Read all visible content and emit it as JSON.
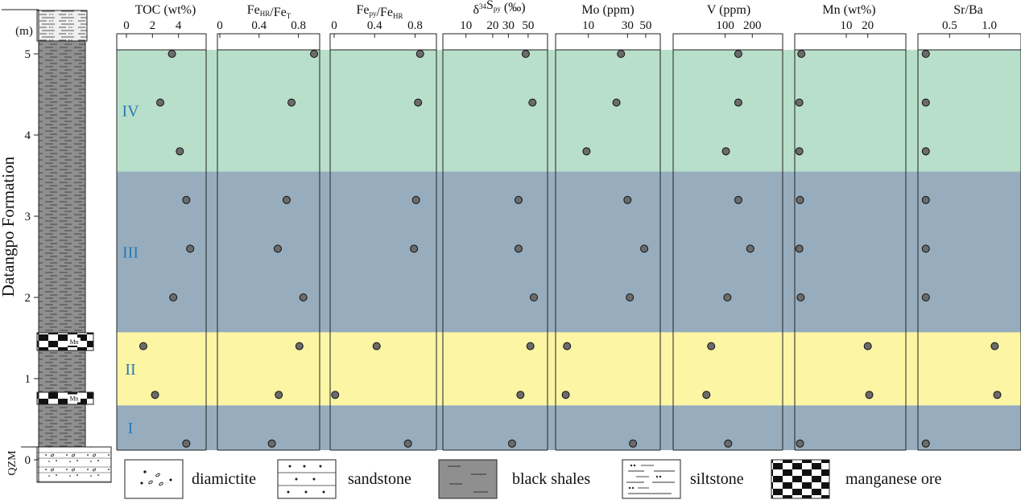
{
  "chart_data": {
    "type": "scatter",
    "formation_label": "Datangpo  Formation",
    "base_unit_label": "QZM",
    "depth_unit": "(m)",
    "depth_ticks": [
      "0",
      "1",
      "2",
      "3",
      "4",
      "5"
    ],
    "depth_range": [
      0,
      5.0
    ],
    "zones": [
      {
        "label": "IV",
        "from": 3.55,
        "to": 5.05,
        "color": "#b8dfca"
      },
      {
        "label": "III",
        "from": 1.57,
        "to": 3.55,
        "color": "#97adbd"
      },
      {
        "label": "II",
        "from": 0.67,
        "to": 1.57,
        "color": "#fbf5a4"
      },
      {
        "label": "I",
        "from": 0.0,
        "to": 0.67,
        "color": "#97adbd"
      }
    ],
    "sample_depths": [
      5.0,
      4.4,
      3.8,
      3.2,
      2.6,
      2.0,
      1.4,
      0.8,
      0.2
    ],
    "panels": [
      {
        "id": "toc",
        "title": "TOC (wt%)",
        "scale": "linear",
        "range": [
          0,
          6
        ],
        "ticks": [
          {
            "label": "0",
            "value": 0
          },
          {
            "label": "2",
            "value": 2
          },
          {
            "label": "4",
            "value": 4
          }
        ],
        "values": [
          3.5,
          2.6,
          4.1,
          4.6,
          4.9,
          3.6,
          1.3,
          2.2,
          4.6
        ]
      },
      {
        "id": "fehr",
        "title": "Fe<sub>HR</sub>/Fe<sub>T</sub>",
        "scale": "linear",
        "range": [
          0,
          1.0
        ],
        "ticks": [
          {
            "label": "0",
            "value": 0
          },
          {
            "label": "0.4",
            "value": 0.4
          },
          {
            "label": "0.8",
            "value": 0.8
          }
        ],
        "values": [
          0.96,
          0.73,
          null,
          0.68,
          0.59,
          0.85,
          0.81,
          0.6,
          0.53
        ]
      },
      {
        "id": "fepy",
        "title": "Fe<sub>py</sub>/Fe<sub>HR</sub>",
        "scale": "linear",
        "range": [
          0,
          0.9
        ],
        "ticks": [
          {
            "label": "0",
            "value": 0
          },
          {
            "label": "0.4",
            "value": 0.4
          },
          {
            "label": "0.8",
            "value": 0.8
          }
        ],
        "values": [
          0.85,
          0.83,
          null,
          0.81,
          0.79,
          null,
          0.42,
          0.01,
          0.73
        ]
      },
      {
        "id": "d34s",
        "title": "δ<sup>34</sup>S<sub>py</sub> (‰)",
        "scale": "log",
        "range": [
          8,
          70
        ],
        "ticks": [
          {
            "label": "10",
            "value": 10
          },
          {
            "label": "20",
            "value": 20
          },
          {
            "label": "30",
            "value": 30
          },
          {
            "label": "50",
            "value": 50
          }
        ],
        "values": [
          47,
          56,
          null,
          39,
          39,
          58,
          53,
          41,
          33
        ]
      },
      {
        "id": "mo",
        "title": "Mo (ppm)",
        "scale": "log",
        "range": [
          5,
          60
        ],
        "ticks": [
          {
            "label": "10",
            "value": 10
          },
          {
            "label": "30",
            "value": 30
          },
          {
            "label": "50",
            "value": 50
          }
        ],
        "values": [
          25,
          22,
          9.5,
          30,
          48,
          32,
          5.5,
          5.3,
          35
        ]
      },
      {
        "id": "v",
        "title": "V (ppm)",
        "scale": "log",
        "range": [
          30,
          400
        ],
        "ticks": [
          {
            "label": "100",
            "value": 100
          },
          {
            "label": "200",
            "value": 200
          }
        ],
        "values": [
          140,
          140,
          102,
          140,
          190,
          106,
          70,
          62,
          108
        ]
      },
      {
        "id": "mn",
        "title": "Mn (wt%)",
        "scale": "log",
        "range": [
          2,
          60
        ],
        "ticks": [
          {
            "label": "10",
            "value": 10
          },
          {
            "label": "20",
            "value": 20
          }
        ],
        "values": [
          2.35,
          2.2,
          2.2,
          2.25,
          2.2,
          2.3,
          20,
          21,
          2.25
        ]
      },
      {
        "id": "srba",
        "title": "Sr/Ba",
        "scale": "log",
        "range": [
          0.3,
          1.6
        ],
        "ticks": [
          {
            "label": "0.5",
            "value": 0.5
          },
          {
            "label": "1.0",
            "value": 1.0
          }
        ],
        "values": [
          0.33,
          0.33,
          0.33,
          0.33,
          0.33,
          0.33,
          1.1,
          1.15,
          0.33
        ]
      }
    ],
    "mn_layer_label": "Mn",
    "legend": [
      "diamictite",
      "sandstone",
      "black  shales",
      "siltstone",
      "manganese ore"
    ]
  }
}
